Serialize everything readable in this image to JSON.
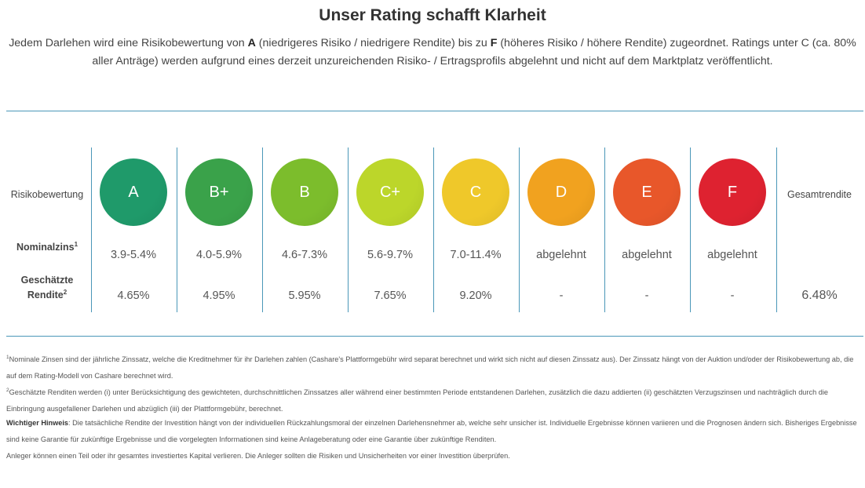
{
  "header": {
    "title": "Unser Rating schafft Klarheit",
    "intro_part1": "Jedem Darlehen wird eine Risikobewertung von ",
    "intro_bold_a": "A",
    "intro_part2": " (niedrigeres Risiko / niedrigere Rendite) bis zu ",
    "intro_bold_f": "F",
    "intro_part3": " (höheres Risiko / höhere Rendite) zugeordnet. Ratings unter C (ca. 80% aller Anträge) werden aufgrund eines derzeit unzureichenden Risiko- / Ertragsprofils abgelehnt und nicht auf dem Marktplatz veröffentlicht."
  },
  "table": {
    "row_labels": {
      "risk": "Risikobewertung",
      "nominal": "Nominalzins",
      "nominal_sup": "1",
      "return_line1": "Geschätzte",
      "return_line2": "Rendite",
      "return_sup": "2"
    },
    "ratings": [
      {
        "grade": "A",
        "nominal": "3.9-5.4%",
        "return": "4.65%",
        "color": "#1f9a6a"
      },
      {
        "grade": "B+",
        "nominal": "4.0-5.9%",
        "return": "4.95%",
        "color": "#3aa24a"
      },
      {
        "grade": "B",
        "nominal": "4.6-7.3%",
        "return": "5.95%",
        "color": "#7cbd2c"
      },
      {
        "grade": "C+",
        "nominal": "5.6-9.7%",
        "return": "7.65%",
        "color": "#bcd62a"
      },
      {
        "grade": "C",
        "nominal": "7.0-11.4%",
        "return": "9.20%",
        "color": "#efc82a"
      },
      {
        "grade": "D",
        "nominal": "abgelehnt",
        "return": "-",
        "color": "#f1a21f"
      },
      {
        "grade": "E",
        "nominal": "abgelehnt",
        "return": "-",
        "color": "#e8572a"
      },
      {
        "grade": "F",
        "nominal": "abgelehnt",
        "return": "-",
        "color": "#de2230"
      }
    ],
    "total_label": "Gesamtrendite",
    "total_value": "6.48%"
  },
  "footnotes": {
    "fn1_sup": "1",
    "fn1_text": "Nominale Zinsen sind der jährliche Zinssatz, welche die Kreditnehmer für ihr Darlehen zahlen (Cashare's Plattformgebühr wird separat berechnet und wirkt sich nicht auf diesen Zinssatz aus). Der Zinssatz hängt von der Auktion und/oder der Risikobewertung ab, die auf dem Rating-Modell von Cashare berechnet wird.",
    "fn2_sup": "2",
    "fn2_text": "Geschätzte Renditen werden (i) unter Berücksichtigung des gewichteten, durchschnittlichen Zinssatzes aller während einer bestimmten Periode entstandenen Darlehen, zusätzlich die dazu addierten (ii) geschätzten Verzugszinsen und nachträglich durch die Einbringung ausgefallener Darlehen und abzüglich (iii) der Plattformgebühr, berechnet.",
    "warning_label": "Wichtiger Hinweis",
    "warning_text": ": Die tatsächliche Rendite der Investition hängt von der individuellen Rückzahlungsmoral der einzelnen Darlehensnehmer ab, welche sehr unsicher ist. Individuelle Ergebnisse können variieren und die Prognosen ändern sich. Bisheriges Ergebnisse sind keine Garantie für zukünftige Ergebnisse und die vorgelegten Informationen sind keine Anlageberatung oder eine Garantie über zukünftige Renditen.",
    "capital_text": "Anleger können einen Teil oder ihr gesamtes investiertes Kapital verlieren. Die Anleger sollten die Risiken und Unsicherheiten vor einer Investition überprüfen."
  }
}
